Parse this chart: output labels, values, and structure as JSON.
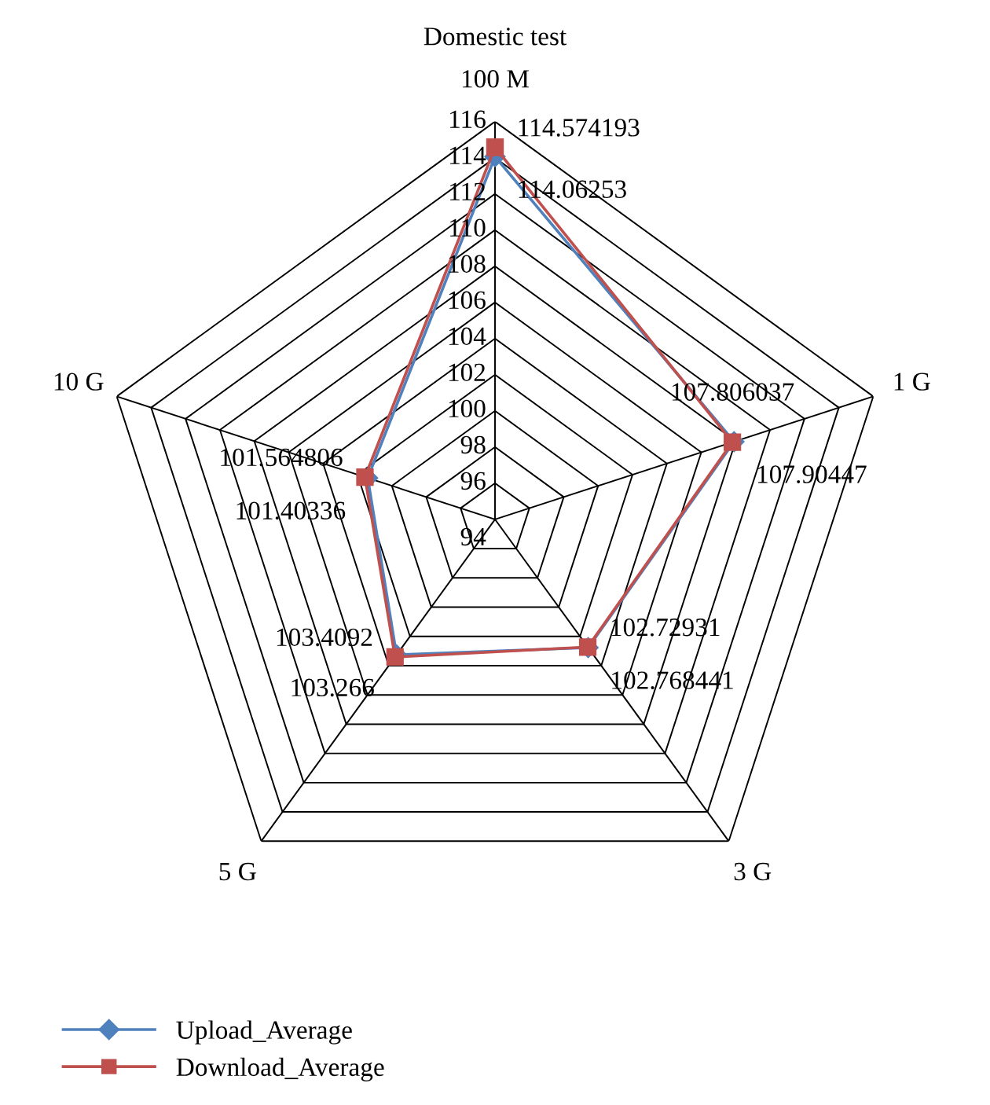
{
  "chart_data": {
    "type": "radar",
    "title": "Domestic test",
    "categories": [
      "100 M",
      "1 G",
      "3 G",
      "5 G",
      "10 G"
    ],
    "ylim": [
      94,
      116
    ],
    "yticks": [
      94,
      96,
      98,
      100,
      102,
      104,
      106,
      108,
      110,
      112,
      114,
      116
    ],
    "series": [
      {
        "name": "Upload_Average",
        "color": "#4f81bd",
        "marker": "diamond",
        "values": [
          114.06253,
          107.90447,
          102.768441,
          103.266,
          101.40336
        ]
      },
      {
        "name": "Download_Average",
        "color": "#c0504d",
        "marker": "square",
        "values": [
          114.574193,
          107.806037,
          102.72931,
          103.4092,
          101.564806
        ]
      }
    ],
    "data_labels": true,
    "legend": "bottom left",
    "grid": true
  }
}
